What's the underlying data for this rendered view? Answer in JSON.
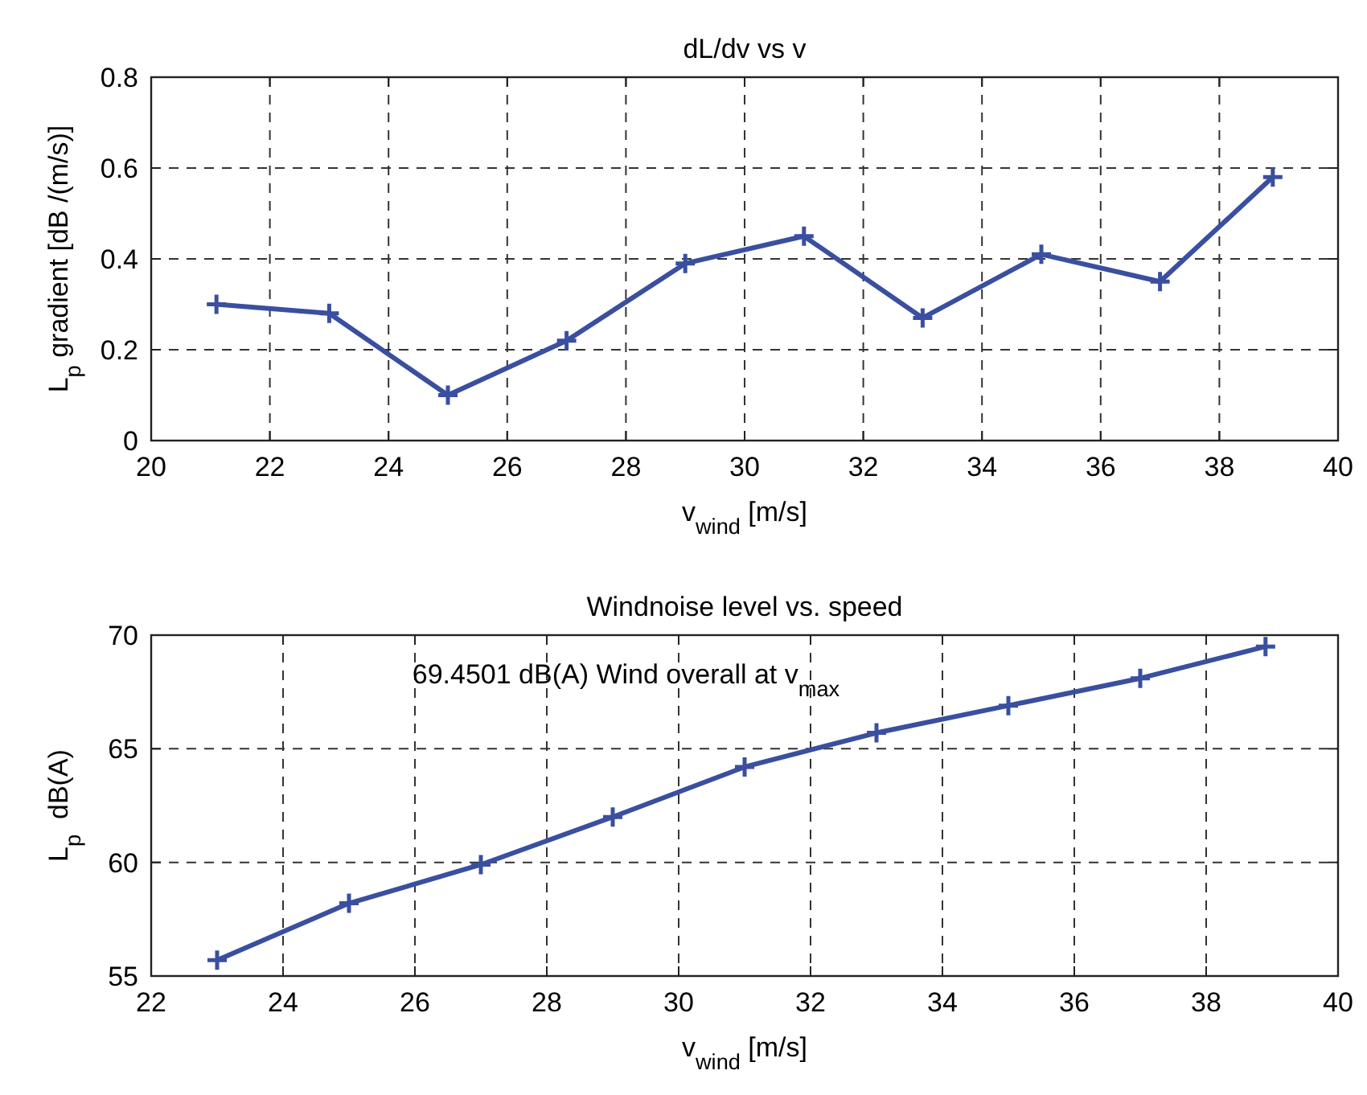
{
  "chart_data": [
    {
      "type": "line",
      "title": "dL/dv vs v",
      "xlabel": "v$_{wind}$ [m/s]",
      "ylabel": "L$_{p}$ gradient [dB /(m/s)]",
      "x": [
        21.1,
        23,
        25,
        27,
        29,
        31,
        33,
        35,
        37,
        38.9
      ],
      "series": [
        {
          "color": "#3a4fa0",
          "values": [
            0.3,
            0.28,
            0.1,
            0.22,
            0.39,
            0.45,
            0.27,
            0.41,
            0.35,
            0.58
          ]
        }
      ],
      "xlim": [
        20,
        40
      ],
      "xticks": [
        20,
        22,
        24,
        26,
        28,
        30,
        32,
        34,
        36,
        38,
        40
      ],
      "ylim": [
        0,
        0.8
      ],
      "yticks": [
        0,
        0.2,
        0.4,
        0.6,
        0.8
      ],
      "grid": true,
      "marker": "cross",
      "line_style": "solid"
    },
    {
      "type": "line",
      "title": "Windnoise level vs. speed",
      "xlabel": "v$_{wind}$ [m/s]",
      "ylabel": "L$_{p}$  dB(A)",
      "annotations": [
        "69.4501 dB(A) Wind overall at v$_{max}$"
      ],
      "x": [
        23,
        25,
        27,
        29,
        31,
        33,
        35,
        37,
        38.9
      ],
      "series": [
        {
          "color": "#3a4fa0",
          "values": [
            55.7,
            58.2,
            59.9,
            62.0,
            64.2,
            65.7,
            66.9,
            68.1,
            69.5
          ]
        }
      ],
      "xlim": [
        22,
        40
      ],
      "xticks": [
        22,
        24,
        26,
        28,
        30,
        32,
        34,
        36,
        38,
        40
      ],
      "ylim": [
        55,
        70
      ],
      "yticks": [
        55,
        60,
        65,
        70
      ],
      "grid": true,
      "marker": "cross",
      "line_style": "solid"
    }
  ]
}
